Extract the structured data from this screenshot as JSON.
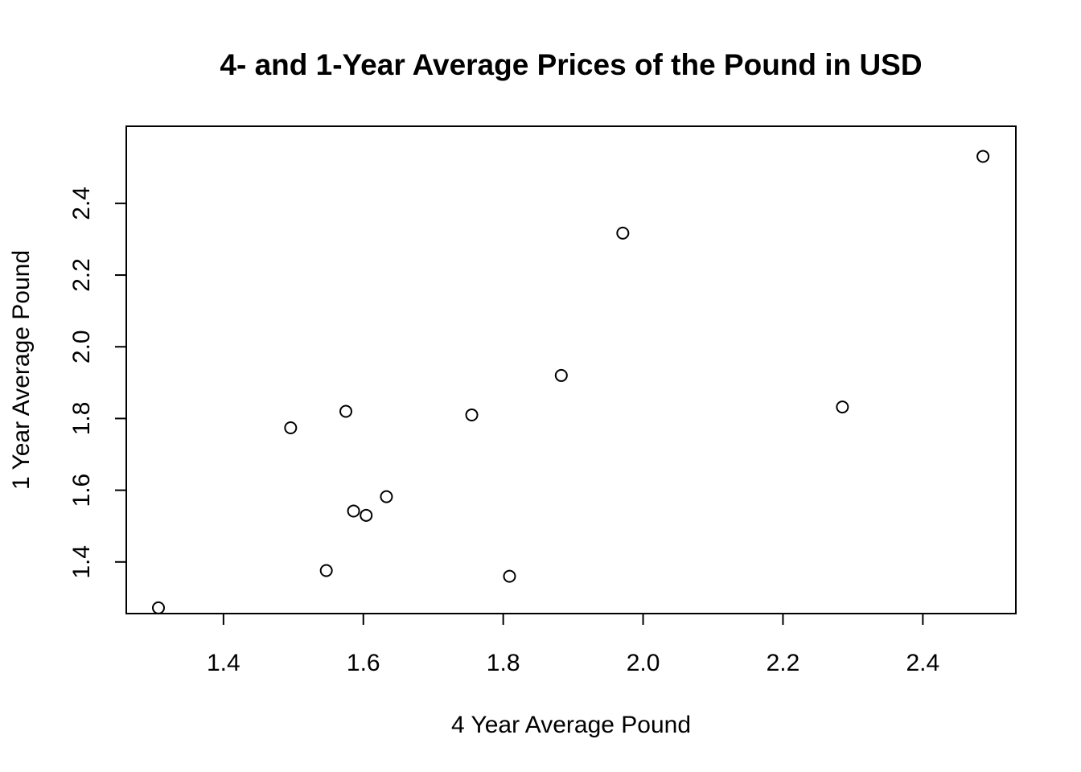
{
  "chart_data": {
    "type": "scatter",
    "title": "4- and 1-Year Average Prices of the Pound in USD",
    "xlabel": "4 Year Average Pound",
    "ylabel": "1 Year Average Pound",
    "xlim": [
      1.261,
      2.533
    ],
    "ylim": [
      1.256,
      2.615
    ],
    "x_ticks": [
      {
        "value": 1.4,
        "label": "1.4"
      },
      {
        "value": 1.6,
        "label": "1.6"
      },
      {
        "value": 1.8,
        "label": "1.8"
      },
      {
        "value": 2.0,
        "label": "2.0"
      },
      {
        "value": 2.2,
        "label": "2.2"
      },
      {
        "value": 2.4,
        "label": "2.4"
      }
    ],
    "y_ticks": [
      {
        "value": 1.4,
        "label": "1.4"
      },
      {
        "value": 1.6,
        "label": "1.6"
      },
      {
        "value": 1.8,
        "label": "1.8"
      },
      {
        "value": 2.0,
        "label": "2.0"
      },
      {
        "value": 2.2,
        "label": "2.2"
      },
      {
        "value": 2.4,
        "label": "2.4"
      }
    ],
    "grid": false,
    "marker": "open-circle",
    "points": [
      {
        "x": 1.307,
        "y": 1.272
      },
      {
        "x": 1.496,
        "y": 1.774
      },
      {
        "x": 1.547,
        "y": 1.376
      },
      {
        "x": 1.575,
        "y": 1.82
      },
      {
        "x": 1.586,
        "y": 1.542
      },
      {
        "x": 1.604,
        "y": 1.53
      },
      {
        "x": 1.633,
        "y": 1.582
      },
      {
        "x": 1.755,
        "y": 1.81
      },
      {
        "x": 1.809,
        "y": 1.36
      },
      {
        "x": 1.883,
        "y": 1.92
      },
      {
        "x": 1.971,
        "y": 2.317
      },
      {
        "x": 2.285,
        "y": 1.832
      },
      {
        "x": 2.486,
        "y": 2.531
      }
    ]
  }
}
